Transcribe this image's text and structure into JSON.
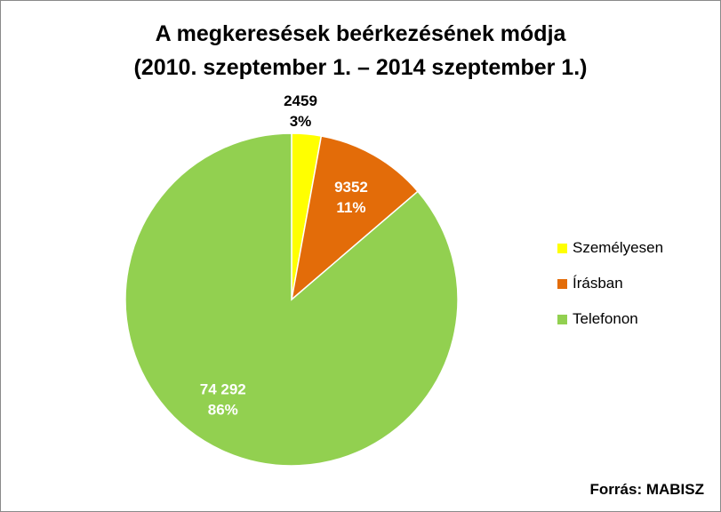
{
  "chart_data": {
    "type": "pie",
    "title": "A megkeresések beérkezésének módja",
    "subtitle": "(2010. szeptember 1. –  2014 szeptember 1.)",
    "slices": [
      {
        "name": "Személyesen",
        "value": 2459,
        "value_label": "2459",
        "percent_label": "3%",
        "color": "#ffff00",
        "label_color": "#000000"
      },
      {
        "name": "Írásban",
        "value": 9352,
        "value_label": "9352",
        "percent_label": "11%",
        "color": "#e36c09",
        "label_color": "#ffffff"
      },
      {
        "name": "Telefonon",
        "value": 74292,
        "value_label": "74 292",
        "percent_label": "86%",
        "color": "#92d050",
        "label_color": "#ffffff"
      }
    ],
    "legend_position": "right",
    "source": "Forrás: MABISZ"
  }
}
